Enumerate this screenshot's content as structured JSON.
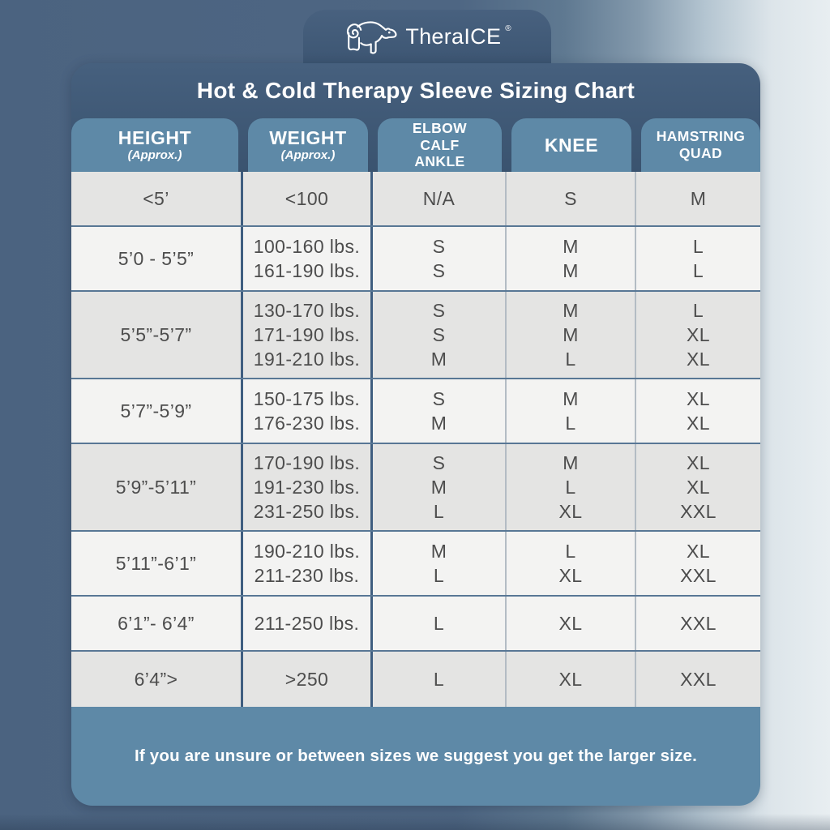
{
  "brand": {
    "name": "TheraICE",
    "registered": "®",
    "icon": "polar-bear-icon"
  },
  "footer_note": "If you are unsure or between sizes we suggest you get the larger size.",
  "colors": {
    "header_navy": "#3c5673",
    "tab_steel_blue": "#5e89a7",
    "row_dark": "#e4e4e3",
    "row_light": "#f3f3f2",
    "cell_text": "#4d4d4d",
    "divider_blue": "#3f5e80",
    "divider_gray": "#b3bcc4",
    "background_left": "#4b6380",
    "background_right": "#e8eef1"
  },
  "chart_data": {
    "type": "table",
    "title": "Hot & Cold Therapy Sleeve Sizing Chart",
    "columns": [
      {
        "id": "height",
        "lines": [
          "HEIGHT"
        ],
        "sublabel": "(Approx.)"
      },
      {
        "id": "weight",
        "lines": [
          "WEIGHT"
        ],
        "sublabel": "(Approx.)"
      },
      {
        "id": "elbow-calf-ankle",
        "lines": [
          "ELBOW",
          "CALF",
          "ANKLE"
        ]
      },
      {
        "id": "knee",
        "lines": [
          "KNEE"
        ]
      },
      {
        "id": "hamstring-quad",
        "lines": [
          "HAMSTRING",
          "QUAD"
        ]
      }
    ],
    "rows": [
      {
        "height": "<5’",
        "weight": [
          "<100"
        ],
        "elbow_calf_ankle": [
          "N/A"
        ],
        "knee": [
          "S"
        ],
        "hamstring_quad": [
          "M"
        ],
        "shade": "dark"
      },
      {
        "height": "5’0 - 5’5”",
        "weight": [
          "100-160 lbs.",
          "161-190 lbs."
        ],
        "elbow_calf_ankle": [
          "S",
          "S"
        ],
        "knee": [
          "M",
          "M"
        ],
        "hamstring_quad": [
          "L",
          "L"
        ],
        "shade": "light"
      },
      {
        "height": "5’5”-5’7”",
        "weight": [
          "130-170 lbs.",
          "171-190 lbs.",
          "191-210 lbs."
        ],
        "elbow_calf_ankle": [
          "S",
          "S",
          "M"
        ],
        "knee": [
          "M",
          "M",
          "L"
        ],
        "hamstring_quad": [
          "L",
          "XL",
          "XL"
        ],
        "shade": "dark"
      },
      {
        "height": "5’7”-5’9”",
        "weight": [
          "150-175 lbs.",
          "176-230 lbs."
        ],
        "elbow_calf_ankle": [
          "S",
          "M"
        ],
        "knee": [
          "M",
          "L"
        ],
        "hamstring_quad": [
          "XL",
          "XL"
        ],
        "shade": "light"
      },
      {
        "height": "5’9”-5’11”",
        "weight": [
          "170-190 lbs.",
          "191-230 lbs.",
          "231-250 lbs."
        ],
        "elbow_calf_ankle": [
          "S",
          "M",
          "L"
        ],
        "knee": [
          "M",
          "L",
          "XL"
        ],
        "hamstring_quad": [
          "XL",
          "XL",
          "XXL"
        ],
        "shade": "dark"
      },
      {
        "height": "5’11”-6’1”",
        "weight": [
          "190-210 lbs.",
          "211-230 lbs."
        ],
        "elbow_calf_ankle": [
          "M",
          "L"
        ],
        "knee": [
          "L",
          "XL"
        ],
        "hamstring_quad": [
          "XL",
          "XXL"
        ],
        "shade": "light"
      },
      {
        "height": "6’1”- 6’4”",
        "weight": [
          "211-250 lbs."
        ],
        "elbow_calf_ankle": [
          "L"
        ],
        "knee": [
          "XL"
        ],
        "hamstring_quad": [
          "XXL"
        ],
        "shade": "light"
      },
      {
        "height": "6’4”>",
        "weight": [
          ">250"
        ],
        "elbow_calf_ankle": [
          "L"
        ],
        "knee": [
          "XL"
        ],
        "hamstring_quad": [
          "XXL"
        ],
        "shade": "dark"
      }
    ]
  }
}
